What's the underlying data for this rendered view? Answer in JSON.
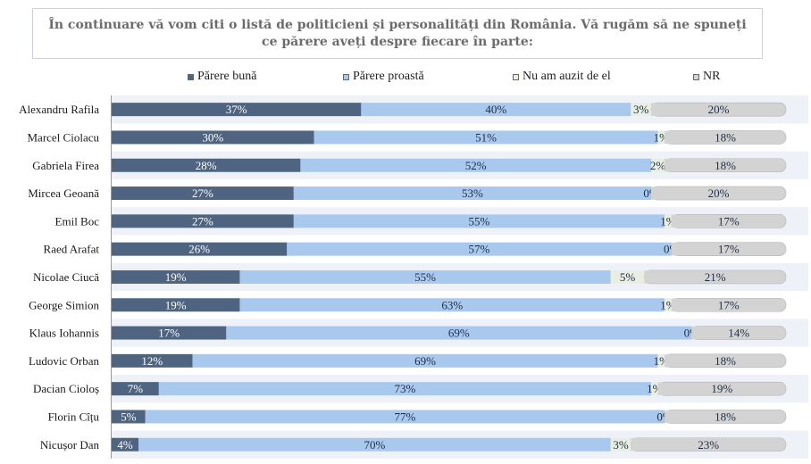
{
  "title": "În continuare vă vom citi o listă de politicieni și personalități din România. Vă rugăm să ne spuneți ce părere aveți despre fiecare în parte:",
  "chart_data": {
    "type": "bar",
    "orientation": "horizontal",
    "stacked": true,
    "title": "În continuare vă vom citi o listă de politicieni și personalități din România. Vă rugăm să ne spuneți ce părere aveți despre fiecare în parte:",
    "legend_position": "top",
    "xlim": [
      0,
      100
    ],
    "categories": [
      "Alexandru Rafila",
      "Marcel Ciolacu",
      "Gabriela Firea",
      "Mircea Geoană",
      "Emil Boc",
      "Raed Arafat",
      "Nicolae Ciucă",
      "George Simion",
      "Klaus Iohannis",
      "Ludovic Orban",
      "Dacian Cioloș",
      "Florin Cîțu",
      "Nicușor Dan"
    ],
    "series": [
      {
        "name": "Părere bună",
        "color": "#4f6480",
        "values": [
          37,
          30,
          28,
          27,
          27,
          26,
          19,
          19,
          17,
          12,
          7,
          5,
          4
        ]
      },
      {
        "name": "Părere proastă",
        "color": "#a9c8ee",
        "values": [
          40,
          51,
          52,
          53,
          55,
          57,
          55,
          63,
          69,
          69,
          73,
          77,
          70
        ]
      },
      {
        "name": "Nu am auzit de el",
        "color": "#e9eee2",
        "values": [
          3,
          1,
          2,
          0,
          1,
          0,
          5,
          1,
          0,
          1,
          1,
          0,
          3
        ]
      },
      {
        "name": "NR",
        "color": "#d3d3d3",
        "values": [
          20,
          18,
          18,
          20,
          17,
          17,
          21,
          17,
          14,
          18,
          19,
          18,
          23
        ]
      }
    ],
    "label_suffix": "%"
  }
}
